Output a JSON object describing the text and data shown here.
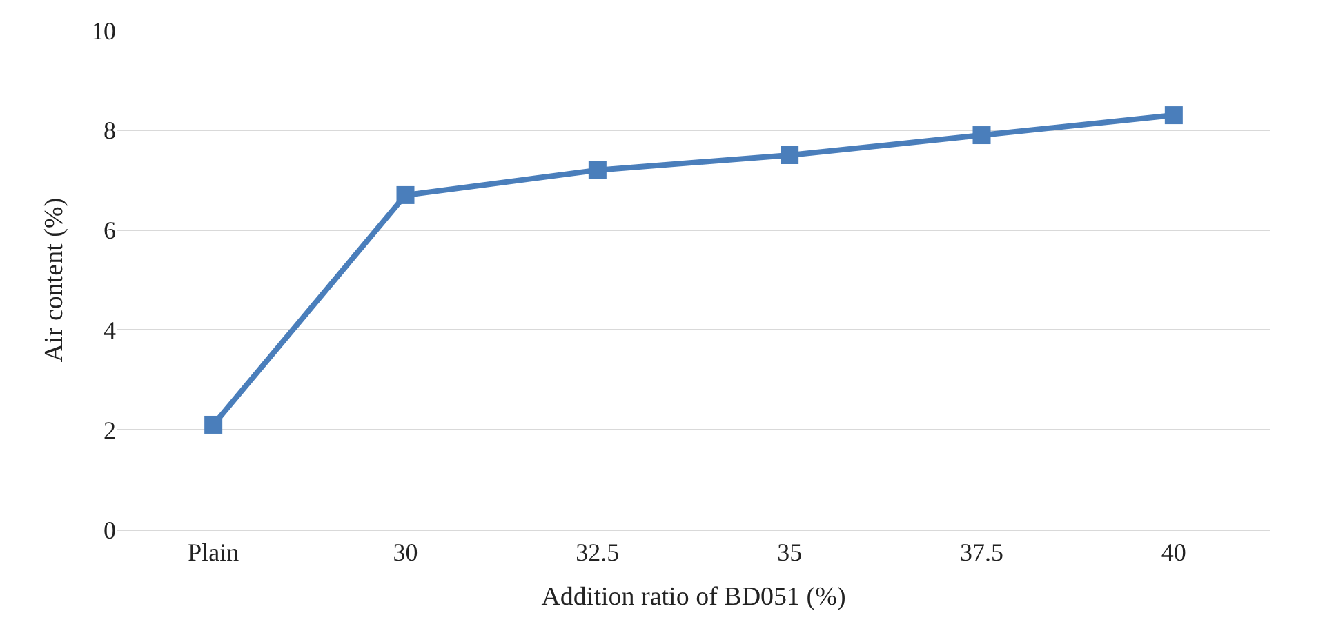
{
  "chart_data": {
    "type": "line",
    "xlabel": "Addition ratio of BD051 (%)",
    "ylabel": "Air content (%)",
    "categories": [
      "Plain",
      "30",
      "32.5",
      "35",
      "37.5",
      "40"
    ],
    "series": [
      {
        "color": "#4a7ebb",
        "values": [
          2.1,
          6.7,
          7.2,
          7.5,
          7.9,
          8.3
        ]
      }
    ],
    "ylim": [
      0,
      10
    ],
    "yticks": [
      0,
      2,
      4,
      6,
      8,
      10
    ],
    "grid": "y",
    "marker": "square",
    "line_style": "solid",
    "legend": false
  }
}
